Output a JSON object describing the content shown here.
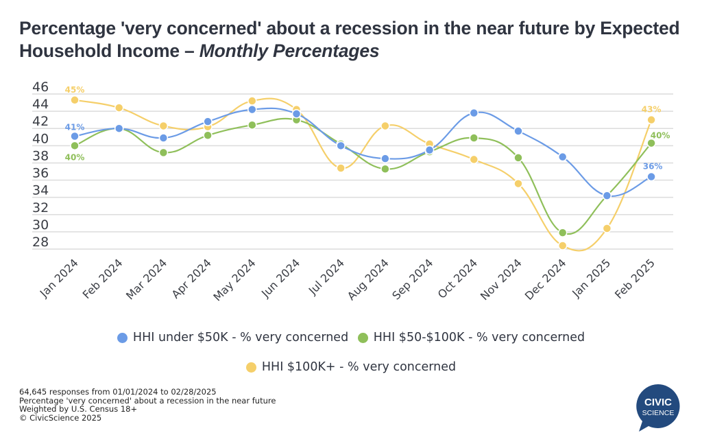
{
  "title": {
    "main": "Percentage 'very concerned' about a recession in the near future by Expected Household Income – ",
    "italic": "Monthly Percentages"
  },
  "chart_data": {
    "type": "line",
    "title": "Percentage 'very concerned' about a recession in the near future by Expected Household Income – Monthly Percentages",
    "xlabel": "",
    "ylabel": "",
    "ylim": [
      28,
      46
    ],
    "yticks": [
      46,
      44,
      42,
      40,
      38,
      36,
      34,
      32,
      30,
      28
    ],
    "grid": true,
    "legend_position": "bottom",
    "categories": [
      "Jan 2024",
      "Feb 2024",
      "Mar 2024",
      "Apr 2024",
      "May 2024",
      "Jun 2024",
      "Jul 2024",
      "Aug 2024",
      "Sep 2024",
      "Oct 2024",
      "Nov 2024",
      "Dec 2024",
      "Jan 2025",
      "Feb 2025"
    ],
    "series": [
      {
        "name": "HHI under $50K - % very concerned",
        "color": "#6b9be6",
        "values": [
          41.1,
          42.0,
          40.9,
          42.8,
          44.2,
          43.7,
          40.0,
          38.5,
          39.5,
          43.8,
          41.7,
          38.7,
          34.2,
          36.4
        ],
        "labels": [
          {
            "index": 0,
            "text": "41%"
          },
          {
            "index": 13,
            "text": "36%"
          }
        ]
      },
      {
        "name": "HHI $50-$100K - % very concerned",
        "color": "#8fbf5a",
        "values": [
          40.0,
          42.0,
          39.2,
          41.2,
          42.4,
          43.0,
          40.2,
          37.3,
          39.3,
          40.9,
          38.6,
          29.9,
          34.2,
          40.3
        ],
        "labels": [
          {
            "index": 0,
            "text": "40%"
          },
          {
            "index": 13,
            "text": "40%"
          }
        ]
      },
      {
        "name": "HHI $100K+ - % very concerned",
        "color": "#f5cf6a",
        "values": [
          45.3,
          44.4,
          42.3,
          42.2,
          45.2,
          44.2,
          37.4,
          42.3,
          40.2,
          38.4,
          35.6,
          28.4,
          30.4,
          43.0
        ],
        "labels": [
          {
            "index": 0,
            "text": "45%"
          },
          {
            "index": 13,
            "text": "43%"
          }
        ]
      }
    ]
  },
  "legend": [
    {
      "label": "HHI under $50K - % very concerned",
      "color": "#6b9be6"
    },
    {
      "label": "HHI $50-$100K - % very concerned",
      "color": "#8fbf5a"
    },
    {
      "label": "HHI $100K+ - % very concerned",
      "color": "#f5cf6a"
    }
  ],
  "footer": [
    "64,645 responses from 01/01/2024 to 02/28/2025",
    "Percentage 'very concerned' about a recession in the near future",
    "Weighted by U.S. Census 18+",
    "© CivicScience 2025"
  ],
  "logo": {
    "line1": "CIVIC",
    "line2": "SCIENCE",
    "color": "#234a7e",
    "icon": "speech-bubble-logo-icon"
  }
}
